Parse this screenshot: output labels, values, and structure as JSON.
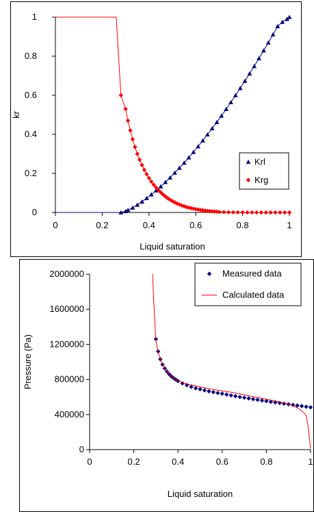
{
  "chart_data": [
    {
      "type": "scatter",
      "xlabel": "Liquid saturation",
      "ylabel": "kr",
      "xlim": [
        0,
        1
      ],
      "ylim": [
        0,
        1
      ],
      "xticks": [
        0,
        0.2,
        0.4,
        0.6,
        0.8,
        1
      ],
      "xtick_labels": [
        "0",
        "0.2",
        "0.4",
        "0.6",
        "0.8",
        "1"
      ],
      "yticks": [
        0,
        0.2,
        0.4,
        0.6,
        0.8,
        1
      ],
      "ytick_labels": [
        "0",
        "0.2",
        "0.4",
        "0.6",
        "0.8",
        "1"
      ],
      "grid": false,
      "legend_position": "right",
      "series": [
        {
          "name": "Krl",
          "marker": "triangle",
          "color": "#000080",
          "x": [
            0.28,
            0.3,
            0.31,
            0.33,
            0.35,
            0.37,
            0.39,
            0.41,
            0.43,
            0.45,
            0.47,
            0.49,
            0.51,
            0.53,
            0.55,
            0.57,
            0.59,
            0.61,
            0.63,
            0.65,
            0.67,
            0.69,
            0.71,
            0.73,
            0.75,
            0.77,
            0.79,
            0.81,
            0.83,
            0.85,
            0.87,
            0.89,
            0.91,
            0.93,
            0.95,
            0.97,
            0.99,
            1.0
          ],
          "y": [
            0.0,
            0.006,
            0.012,
            0.024,
            0.039,
            0.055,
            0.073,
            0.092,
            0.112,
            0.133,
            0.155,
            0.178,
            0.203,
            0.228,
            0.254,
            0.281,
            0.309,
            0.338,
            0.368,
            0.399,
            0.43,
            0.462,
            0.495,
            0.529,
            0.564,
            0.6,
            0.636,
            0.673,
            0.711,
            0.749,
            0.789,
            0.829,
            0.869,
            0.911,
            0.953,
            0.975,
            0.99,
            1.0
          ]
        },
        {
          "name": "Krg",
          "marker": "diamond",
          "color": "#ff0000",
          "x": [
            0.28,
            0.3,
            0.31,
            0.32,
            0.33,
            0.34,
            0.35,
            0.36,
            0.37,
            0.38,
            0.39,
            0.4,
            0.41,
            0.42,
            0.43,
            0.44,
            0.45,
            0.46,
            0.47,
            0.48,
            0.49,
            0.5,
            0.51,
            0.52,
            0.53,
            0.54,
            0.55,
            0.56,
            0.57,
            0.58,
            0.59,
            0.6,
            0.61,
            0.62,
            0.63,
            0.64,
            0.65,
            0.66,
            0.67,
            0.68,
            0.69,
            0.7,
            0.72,
            0.74,
            0.76,
            0.78,
            0.8,
            0.82,
            0.84,
            0.86,
            0.88,
            0.9,
            0.92,
            0.94,
            0.96,
            0.98,
            1.0
          ],
          "y": [
            0.6,
            0.53,
            0.47,
            0.42,
            0.375,
            0.335,
            0.3,
            0.27,
            0.243,
            0.218,
            0.196,
            0.176,
            0.158,
            0.142,
            0.128,
            0.115,
            0.103,
            0.092,
            0.082,
            0.073,
            0.065,
            0.058,
            0.052,
            0.046,
            0.041,
            0.036,
            0.032,
            0.028,
            0.025,
            0.022,
            0.019,
            0.017,
            0.015,
            0.013,
            0.011,
            0.01,
            0.008,
            0.007,
            0.006,
            0.005,
            0.004,
            0.003,
            0.002,
            0.0015,
            0.001,
            0.0008,
            0.0005,
            0.0003,
            0.0002,
            0.0001,
            0,
            0,
            0,
            0,
            0,
            0,
            0
          ]
        },
        {
          "name": "",
          "marker": "none",
          "color": "#ff0000",
          "x": [
            0,
            0.26,
            0.28
          ],
          "y": [
            1,
            1,
            0.6
          ]
        },
        {
          "name": "",
          "marker": "none",
          "color": "#000080",
          "x": [
            0,
            0.28
          ],
          "y": [
            0,
            0
          ]
        }
      ]
    },
    {
      "type": "scatter",
      "xlabel": "Liquid saturation",
      "ylabel": "Pressure (Pa)",
      "xlim": [
        0,
        1
      ],
      "ylim": [
        0,
        2000000
      ],
      "xticks": [
        0,
        0.2,
        0.4,
        0.6,
        0.8,
        1
      ],
      "xtick_labels": [
        "0",
        "0.2",
        "0.4",
        "0.6",
        "0.8",
        "1"
      ],
      "yticks": [
        0,
        400000,
        800000,
        1200000,
        1600000,
        2000000
      ],
      "ytick_labels": [
        "0",
        "400000",
        "800000",
        "1200000",
        "1600000",
        "2000000"
      ],
      "grid": false,
      "legend_position": "top-right",
      "series": [
        {
          "name": "Measured data",
          "marker": "diamond",
          "color": "#000080",
          "x": [
            0.3,
            0.31,
            0.32,
            0.33,
            0.34,
            0.35,
            0.36,
            0.37,
            0.38,
            0.39,
            0.4,
            0.42,
            0.44,
            0.46,
            0.48,
            0.5,
            0.52,
            0.54,
            0.56,
            0.58,
            0.6,
            0.62,
            0.64,
            0.66,
            0.68,
            0.7,
            0.72,
            0.74,
            0.76,
            0.78,
            0.8,
            0.82,
            0.84,
            0.86,
            0.88,
            0.9,
            0.92,
            0.94,
            0.96,
            0.98,
            1.0
          ],
          "y": [
            1260000,
            1120000,
            1030000,
            970000,
            925000,
            890000,
            860000,
            835000,
            815000,
            798000,
            782000,
            755000,
            735000,
            715000,
            700000,
            688000,
            676000,
            665000,
            656000,
            646000,
            638000,
            628000,
            618000,
            610000,
            600000,
            592000,
            584000,
            576000,
            568000,
            560000,
            553000,
            545000,
            538000,
            532000,
            524000,
            517000,
            510000,
            503000,
            496000,
            489000,
            482000
          ]
        },
        {
          "name": "Calculated data",
          "marker": "none",
          "color": "#ff0000",
          "x": [
            0.285,
            0.29,
            0.3,
            0.31,
            0.32,
            0.34,
            0.36,
            0.38,
            0.4,
            0.42,
            0.44,
            0.46,
            0.5,
            0.55,
            0.6,
            0.65,
            0.7,
            0.75,
            0.8,
            0.85,
            0.9,
            0.93,
            0.95,
            0.97,
            0.98,
            0.99,
            1.0
          ],
          "y": [
            2000000,
            1700000,
            1240000,
            1120000,
            1030000,
            925000,
            860000,
            815000,
            785000,
            765000,
            750000,
            738000,
            715000,
            690000,
            670000,
            650000,
            625000,
            600000,
            575000,
            550000,
            520000,
            490000,
            460000,
            420000,
            390000,
            240000,
            10000
          ]
        }
      ]
    }
  ]
}
